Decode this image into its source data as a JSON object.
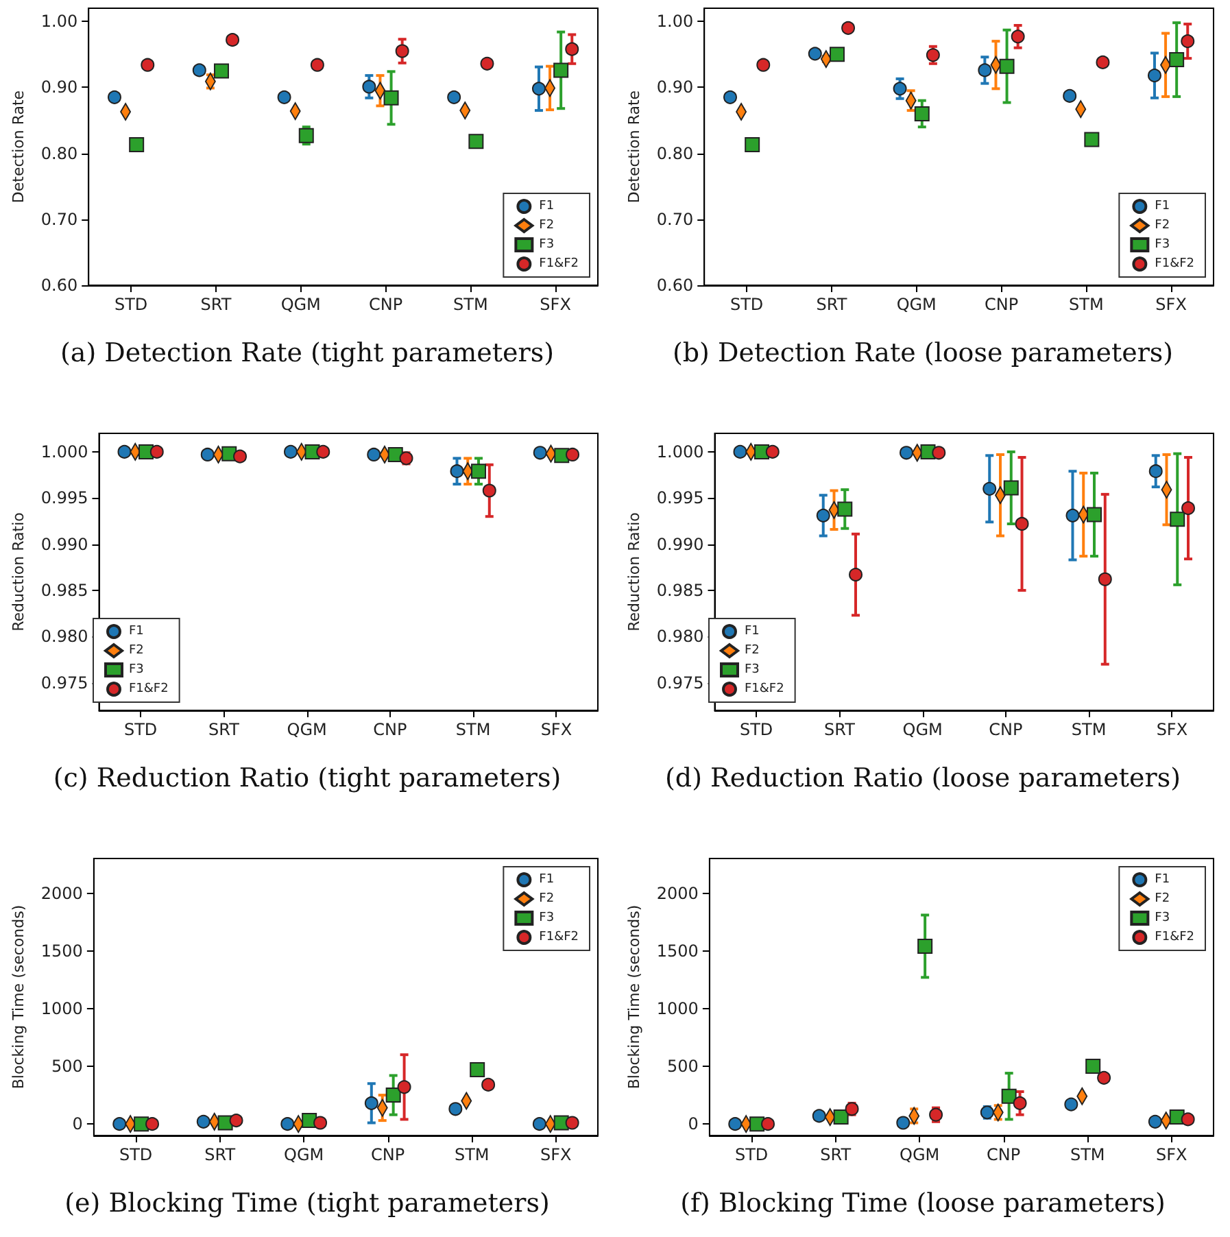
{
  "chart_data": [
    {
      "type": "scatter",
      "title": "(a) Detection Rate (tight parameters)",
      "ylabel": "Detection Rate",
      "categories": [
        "STD",
        "SRT",
        "QGM",
        "CNP",
        "STM",
        "SFX"
      ],
      "ylim": [
        0.6,
        1.02
      ],
      "yticks": [
        {
          "value": 0.6,
          "label": "0.60"
        },
        {
          "value": 0.7,
          "label": "0.70"
        },
        {
          "value": 0.8,
          "label": "0.80"
        },
        {
          "value": 0.9,
          "label": "0.90"
        },
        {
          "value": 1.0,
          "label": "1.00"
        }
      ],
      "legend": "bottom right",
      "series": [
        {
          "name": "F1",
          "color": "#1f77b4",
          "marker": "circle",
          "values": [
            0.885,
            0.926,
            0.885,
            0.901,
            0.885,
            0.898
          ],
          "errors": [
            null,
            0.006,
            null,
            0.017,
            null,
            0.033
          ]
        },
        {
          "name": "F2",
          "color": "#ff7f0e",
          "marker": "diamond",
          "values": [
            0.863,
            0.909,
            0.864,
            0.895,
            0.865,
            0.899
          ],
          "errors": [
            null,
            0.01,
            null,
            0.023,
            null,
            0.033
          ]
        },
        {
          "name": "F3",
          "color": "#2ca02c",
          "marker": "square",
          "values": [
            0.813,
            0.925,
            0.827,
            0.884,
            0.818,
            0.926
          ],
          "errors": [
            null,
            0.005,
            0.013,
            0.04,
            null,
            0.058
          ]
        },
        {
          "name": "F1&F2",
          "color": "#d62728",
          "marker": "circle",
          "values": [
            0.934,
            0.972,
            0.934,
            0.955,
            0.936,
            0.958
          ],
          "errors": [
            null,
            0.006,
            null,
            0.018,
            null,
            0.022
          ]
        }
      ]
    },
    {
      "type": "scatter",
      "title": "(b) Detection Rate (loose parameters)",
      "ylabel": "Detection Rate",
      "categories": [
        "STD",
        "SRT",
        "QGM",
        "CNP",
        "STM",
        "SFX"
      ],
      "ylim": [
        0.6,
        1.02
      ],
      "yticks": [
        {
          "value": 0.6,
          "label": "0.60"
        },
        {
          "value": 0.7,
          "label": "0.70"
        },
        {
          "value": 0.8,
          "label": "0.80"
        },
        {
          "value": 0.9,
          "label": "0.90"
        },
        {
          "value": 1.0,
          "label": "1.00"
        }
      ],
      "legend": "bottom right",
      "series": [
        {
          "name": "F1",
          "color": "#1f77b4",
          "marker": "circle",
          "values": [
            0.885,
            0.951,
            0.898,
            0.926,
            0.887,
            0.918
          ],
          "errors": [
            null,
            null,
            0.015,
            0.02,
            null,
            0.034
          ]
        },
        {
          "name": "F2",
          "color": "#ff7f0e",
          "marker": "diamond",
          "values": [
            0.863,
            0.943,
            0.88,
            0.934,
            0.867,
            0.934
          ],
          "errors": [
            null,
            0.004,
            0.015,
            0.036,
            null,
            0.048
          ]
        },
        {
          "name": "F3",
          "color": "#2ca02c",
          "marker": "square",
          "values": [
            0.813,
            0.95,
            0.86,
            0.932,
            0.821,
            0.942
          ],
          "errors": [
            null,
            null,
            0.02,
            0.055,
            null,
            0.056
          ]
        },
        {
          "name": "F1&F2",
          "color": "#d62728",
          "marker": "circle",
          "values": [
            0.934,
            0.99,
            0.949,
            0.977,
            0.938,
            0.97
          ],
          "errors": [
            null,
            null,
            0.013,
            0.017,
            null,
            0.026
          ]
        }
      ]
    },
    {
      "type": "scatter",
      "title": "(c) Reduction Ratio (tight parameters)",
      "ylabel": "Reduction Ratio",
      "categories": [
        "STD",
        "SRT",
        "QGM",
        "CNP",
        "STM",
        "SFX"
      ],
      "ylim": [
        0.972,
        1.002
      ],
      "yticks": [
        0.975,
        {
          "value": 0.98,
          "label": "0.980"
        },
        0.985,
        {
          "value": 0.99,
          "label": "0.990"
        },
        0.995,
        {
          "value": 1.0,
          "label": "1.000"
        }
      ],
      "legend": "bottom left",
      "series": [
        {
          "name": "F1",
          "color": "#1f77b4",
          "marker": "circle",
          "values": [
            1.0,
            0.9997,
            1.0,
            0.9997,
            0.9979,
            0.9999
          ],
          "errors": [
            null,
            null,
            null,
            null,
            0.0014,
            null
          ]
        },
        {
          "name": "F2",
          "color": "#ff7f0e",
          "marker": "diamond",
          "values": [
            1.0,
            0.9997,
            1.0,
            0.9997,
            0.9979,
            0.9998
          ],
          "errors": [
            null,
            null,
            null,
            null,
            0.0014,
            null
          ]
        },
        {
          "name": "F3",
          "color": "#2ca02c",
          "marker": "square",
          "values": [
            1.0,
            0.9998,
            1.0,
            0.9997,
            0.9979,
            0.9996
          ],
          "errors": [
            null,
            null,
            null,
            null,
            0.0014,
            null
          ]
        },
        {
          "name": "F1&F2",
          "color": "#d62728",
          "marker": "circle",
          "values": [
            1.0,
            0.9995,
            1.0,
            0.9993,
            0.9958,
            0.9997
          ],
          "errors": [
            null,
            null,
            null,
            0.0006,
            0.0028,
            null
          ]
        }
      ]
    },
    {
      "type": "scatter",
      "title": "(d) Reduction Ratio (loose parameters)",
      "ylabel": "Reduction Ratio",
      "categories": [
        "STD",
        "SRT",
        "QGM",
        "CNP",
        "STM",
        "SFX"
      ],
      "ylim": [
        0.972,
        1.002
      ],
      "yticks": [
        0.975,
        {
          "value": 0.98,
          "label": "0.980"
        },
        0.985,
        {
          "value": 0.99,
          "label": "0.990"
        },
        0.995,
        {
          "value": 1.0,
          "label": "1.000"
        }
      ],
      "legend": "bottom left",
      "series": [
        {
          "name": "F1",
          "color": "#1f77b4",
          "marker": "circle",
          "values": [
            1.0,
            0.9931,
            0.9999,
            0.996,
            0.9931,
            0.9979
          ],
          "errors": [
            null,
            0.0022,
            null,
            0.0036,
            0.0048,
            0.0017
          ]
        },
        {
          "name": "F2",
          "color": "#ff7f0e",
          "marker": "diamond",
          "values": [
            1.0,
            0.9937,
            0.9999,
            0.9953,
            0.9932,
            0.9959
          ],
          "errors": [
            null,
            0.0021,
            null,
            0.0044,
            0.0045,
            0.0038
          ]
        },
        {
          "name": "F3",
          "color": "#2ca02c",
          "marker": "square",
          "values": [
            1.0,
            0.9938,
            1.0,
            0.9961,
            0.9932,
            0.9927
          ],
          "errors": [
            null,
            0.0021,
            null,
            0.0039,
            0.0045,
            0.0071
          ]
        },
        {
          "name": "F1&F2",
          "color": "#d62728",
          "marker": "circle",
          "values": [
            1.0,
            0.9867,
            0.9999,
            0.9922,
            0.9862,
            0.9939
          ],
          "errors": [
            null,
            0.0044,
            null,
            0.0072,
            0.0092,
            0.0055
          ]
        }
      ]
    },
    {
      "type": "scatter",
      "title": "(e) Blocking Time (tight parameters)",
      "ylabel": "Blocking Time (seconds)",
      "categories": [
        "STD",
        "SRT",
        "QGM",
        "CNP",
        "STM",
        "SFX"
      ],
      "ylim": [
        -100,
        2300
      ],
      "yticks": [
        0,
        500,
        1000,
        1500,
        2000
      ],
      "legend": "top right",
      "series": [
        {
          "name": "F1",
          "color": "#1f77b4",
          "marker": "circle",
          "values": [
            0,
            20,
            0,
            180,
            130,
            0
          ],
          "errors": [
            null,
            null,
            null,
            170,
            null,
            null
          ]
        },
        {
          "name": "F2",
          "color": "#ff7f0e",
          "marker": "diamond",
          "values": [
            0,
            20,
            0,
            140,
            200,
            0
          ],
          "errors": [
            null,
            null,
            null,
            110,
            null,
            null
          ]
        },
        {
          "name": "F3",
          "color": "#2ca02c",
          "marker": "square",
          "values": [
            0,
            10,
            30,
            250,
            470,
            10
          ],
          "errors": [
            null,
            null,
            null,
            170,
            null,
            null
          ]
        },
        {
          "name": "F1&F2",
          "color": "#d62728",
          "marker": "circle",
          "values": [
            0,
            30,
            10,
            320,
            340,
            10
          ],
          "errors": [
            null,
            null,
            null,
            280,
            null,
            null
          ]
        }
      ]
    },
    {
      "type": "scatter",
      "title": "(f) Blocking Time (loose parameters)",
      "ylabel": "Blocking Time (seconds)",
      "categories": [
        "STD",
        "SRT",
        "QGM",
        "CNP",
        "STM",
        "SFX"
      ],
      "ylim": [
        -100,
        2300
      ],
      "yticks": [
        0,
        500,
        1000,
        1500,
        2000
      ],
      "legend": "top right",
      "series": [
        {
          "name": "F1",
          "color": "#1f77b4",
          "marker": "circle",
          "values": [
            0,
            70,
            10,
            100,
            170,
            20
          ],
          "errors": [
            null,
            null,
            null,
            50,
            null,
            null
          ]
        },
        {
          "name": "F2",
          "color": "#ff7f0e",
          "marker": "diamond",
          "values": [
            0,
            60,
            70,
            100,
            240,
            30
          ],
          "errors": [
            null,
            null,
            60,
            60,
            null,
            null
          ]
        },
        {
          "name": "F3",
          "color": "#2ca02c",
          "marker": "square",
          "values": [
            0,
            60,
            1540,
            240,
            500,
            60
          ],
          "errors": [
            null,
            null,
            270,
            200,
            null,
            50
          ]
        },
        {
          "name": "F1&F2",
          "color": "#d62728",
          "marker": "circle",
          "values": [
            0,
            130,
            80,
            180,
            400,
            40
          ],
          "errors": [
            null,
            50,
            60,
            100,
            null,
            30
          ]
        }
      ]
    }
  ]
}
